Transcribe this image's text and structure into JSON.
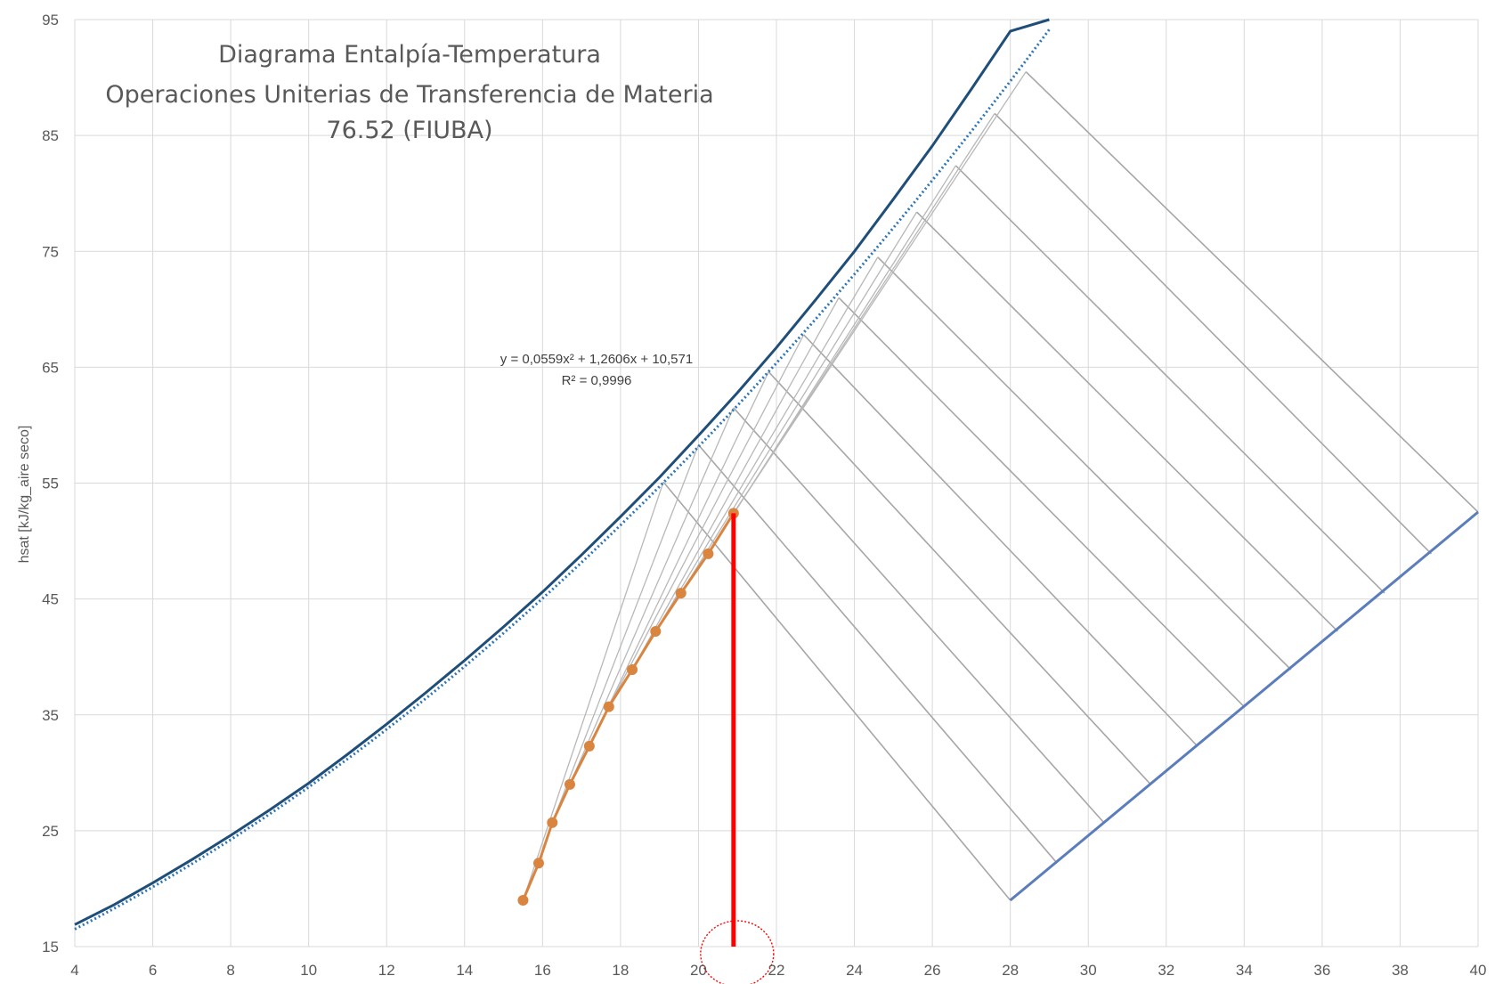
{
  "chart_data": {
    "type": "line",
    "title_lines": [
      "Diagrama Entalpía-Temperatura",
      "Operaciones Uniterias de Transferencia de Materia",
      "76.52 (FIUBA)"
    ],
    "xlabel": "",
    "ylabel": "hsat [kJ/kg_aire seco]",
    "xlim": [
      4,
      40
    ],
    "ylim": [
      15,
      95
    ],
    "xticks": [
      4,
      6,
      8,
      10,
      12,
      14,
      16,
      18,
      20,
      22,
      24,
      26,
      28,
      30,
      32,
      34,
      36,
      38,
      40
    ],
    "yticks": [
      15,
      25,
      35,
      45,
      55,
      65,
      75,
      85,
      95
    ],
    "grid": true,
    "trendline": {
      "equation": "y = 0,0559x² + 1,2606x + 10,571",
      "r2": "R² = 0,9996",
      "coefficients": [
        0.0559,
        1.2606,
        10.571
      ]
    },
    "saturation_curve": {
      "color": "#1f4e79",
      "x": [
        4.0,
        5.0,
        6.0,
        7.0,
        8.0,
        9.0,
        10.0,
        11.0,
        12.0,
        13.0,
        14.0,
        15.0,
        16.0,
        17.0,
        18.0,
        19.0,
        20.0,
        21.0,
        22.0,
        23.0,
        24.0,
        25.0,
        26.0,
        27.0,
        28.0,
        29.0
      ],
      "y": [
        16.9,
        18.6,
        20.5,
        22.5,
        24.6,
        26.8,
        29.1,
        31.6,
        34.2,
        36.9,
        39.7,
        42.6,
        45.6,
        48.8,
        52.1,
        55.5,
        59.1,
        62.8,
        66.7,
        70.8,
        75.0,
        79.5,
        84.1,
        89.0,
        94.0,
        95.7
      ]
    },
    "operating_line": {
      "color": "#d9843f",
      "x": [
        15.5,
        15.9,
        16.25,
        16.7,
        17.2,
        17.7,
        18.3,
        18.9,
        19.55,
        20.25,
        20.9
      ],
      "y": [
        19.0,
        22.2,
        25.7,
        29.0,
        32.3,
        35.7,
        38.9,
        42.2,
        45.5,
        48.9,
        52.4
      ]
    },
    "air_line": {
      "color": "#5b7dbc",
      "x": [
        28.0,
        40.0
      ],
      "y": [
        19.0,
        52.5
      ]
    },
    "tie_lines": [
      {
        "from": [
          28.0,
          19.0
        ],
        "to": [
          19.1,
          55.1
        ]
      },
      {
        "from": [
          29.2,
          22.2
        ],
        "to": [
          20.0,
          58.3
        ]
      },
      {
        "from": [
          30.4,
          25.7
        ],
        "to": [
          20.9,
          61.5
        ]
      },
      {
        "from": [
          31.6,
          29.0
        ],
        "to": [
          21.8,
          64.6
        ]
      },
      {
        "from": [
          32.8,
          32.3
        ],
        "to": [
          22.7,
          67.8
        ]
      },
      {
        "from": [
          34.0,
          35.7
        ],
        "to": [
          23.6,
          71.0
        ]
      },
      {
        "from": [
          35.2,
          38.9
        ],
        "to": [
          24.6,
          74.5
        ]
      },
      {
        "from": [
          36.4,
          42.2
        ],
        "to": [
          25.6,
          78.4
        ]
      },
      {
        "from": [
          37.6,
          45.5
        ],
        "to": [
          26.6,
          82.4
        ]
      },
      {
        "from": [
          38.8,
          48.9
        ],
        "to": [
          27.6,
          86.9
        ]
      },
      {
        "from": [
          40.0,
          52.5
        ],
        "to": [
          28.4,
          90.5
        ]
      }
    ],
    "fan_lines": [
      {
        "from": [
          15.5,
          19.0
        ],
        "to": [
          19.1,
          55.1
        ]
      },
      {
        "from": [
          16.25,
          25.7
        ],
        "to": [
          20.0,
          58.3
        ]
      },
      {
        "from": [
          16.7,
          29.0
        ],
        "to": [
          20.9,
          61.5
        ]
      },
      {
        "from": [
          17.2,
          32.3
        ],
        "to": [
          21.8,
          64.6
        ]
      },
      {
        "from": [
          17.7,
          35.7
        ],
        "to": [
          22.7,
          67.8
        ]
      },
      {
        "from": [
          18.3,
          38.9
        ],
        "to": [
          23.6,
          71.0
        ]
      },
      {
        "from": [
          18.9,
          42.2
        ],
        "to": [
          24.6,
          74.5
        ]
      },
      {
        "from": [
          19.55,
          45.5
        ],
        "to": [
          25.6,
          78.4
        ]
      },
      {
        "from": [
          20.25,
          48.9
        ],
        "to": [
          26.6,
          82.4
        ]
      },
      {
        "from": [
          20.9,
          52.4
        ],
        "to": [
          27.6,
          86.9
        ]
      },
      {
        "from": [
          20.9,
          52.4
        ],
        "to": [
          28.4,
          90.5
        ]
      }
    ],
    "marker_line": {
      "color": "#ff0000",
      "x": 20.9,
      "y_from": 15,
      "y_to": 52.4
    },
    "highlight_circle": {
      "color": "#ff0000",
      "center": [
        20.9,
        15
      ]
    }
  }
}
